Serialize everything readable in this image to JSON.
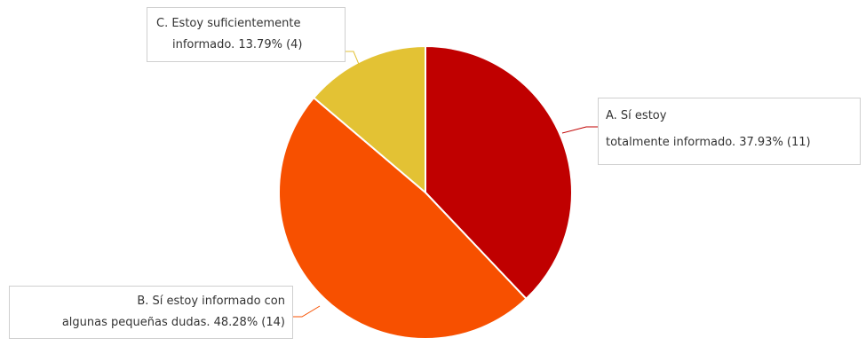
{
  "chart_data": {
    "type": "pie",
    "slices": [
      {
        "key": "A",
        "line1": "A. Sí estoy",
        "line2": "totalmente informado.  37.93% (11)",
        "value": 37.93,
        "count": 11,
        "color": "#c00000"
      },
      {
        "key": "B",
        "line1": "B. Sí estoy informado con",
        "line2": "algunas pequeñas dudas.  48.28% (14)",
        "value": 48.28,
        "count": 14,
        "color": "#f75000"
      },
      {
        "key": "C",
        "line1": "C. Estoy suficientemente",
        "line2": "informado.  13.79% (4)",
        "value": 13.79,
        "count": 4,
        "color": "#e3c234"
      }
    ],
    "start": "12 o'clock",
    "direction": "clockwise"
  }
}
